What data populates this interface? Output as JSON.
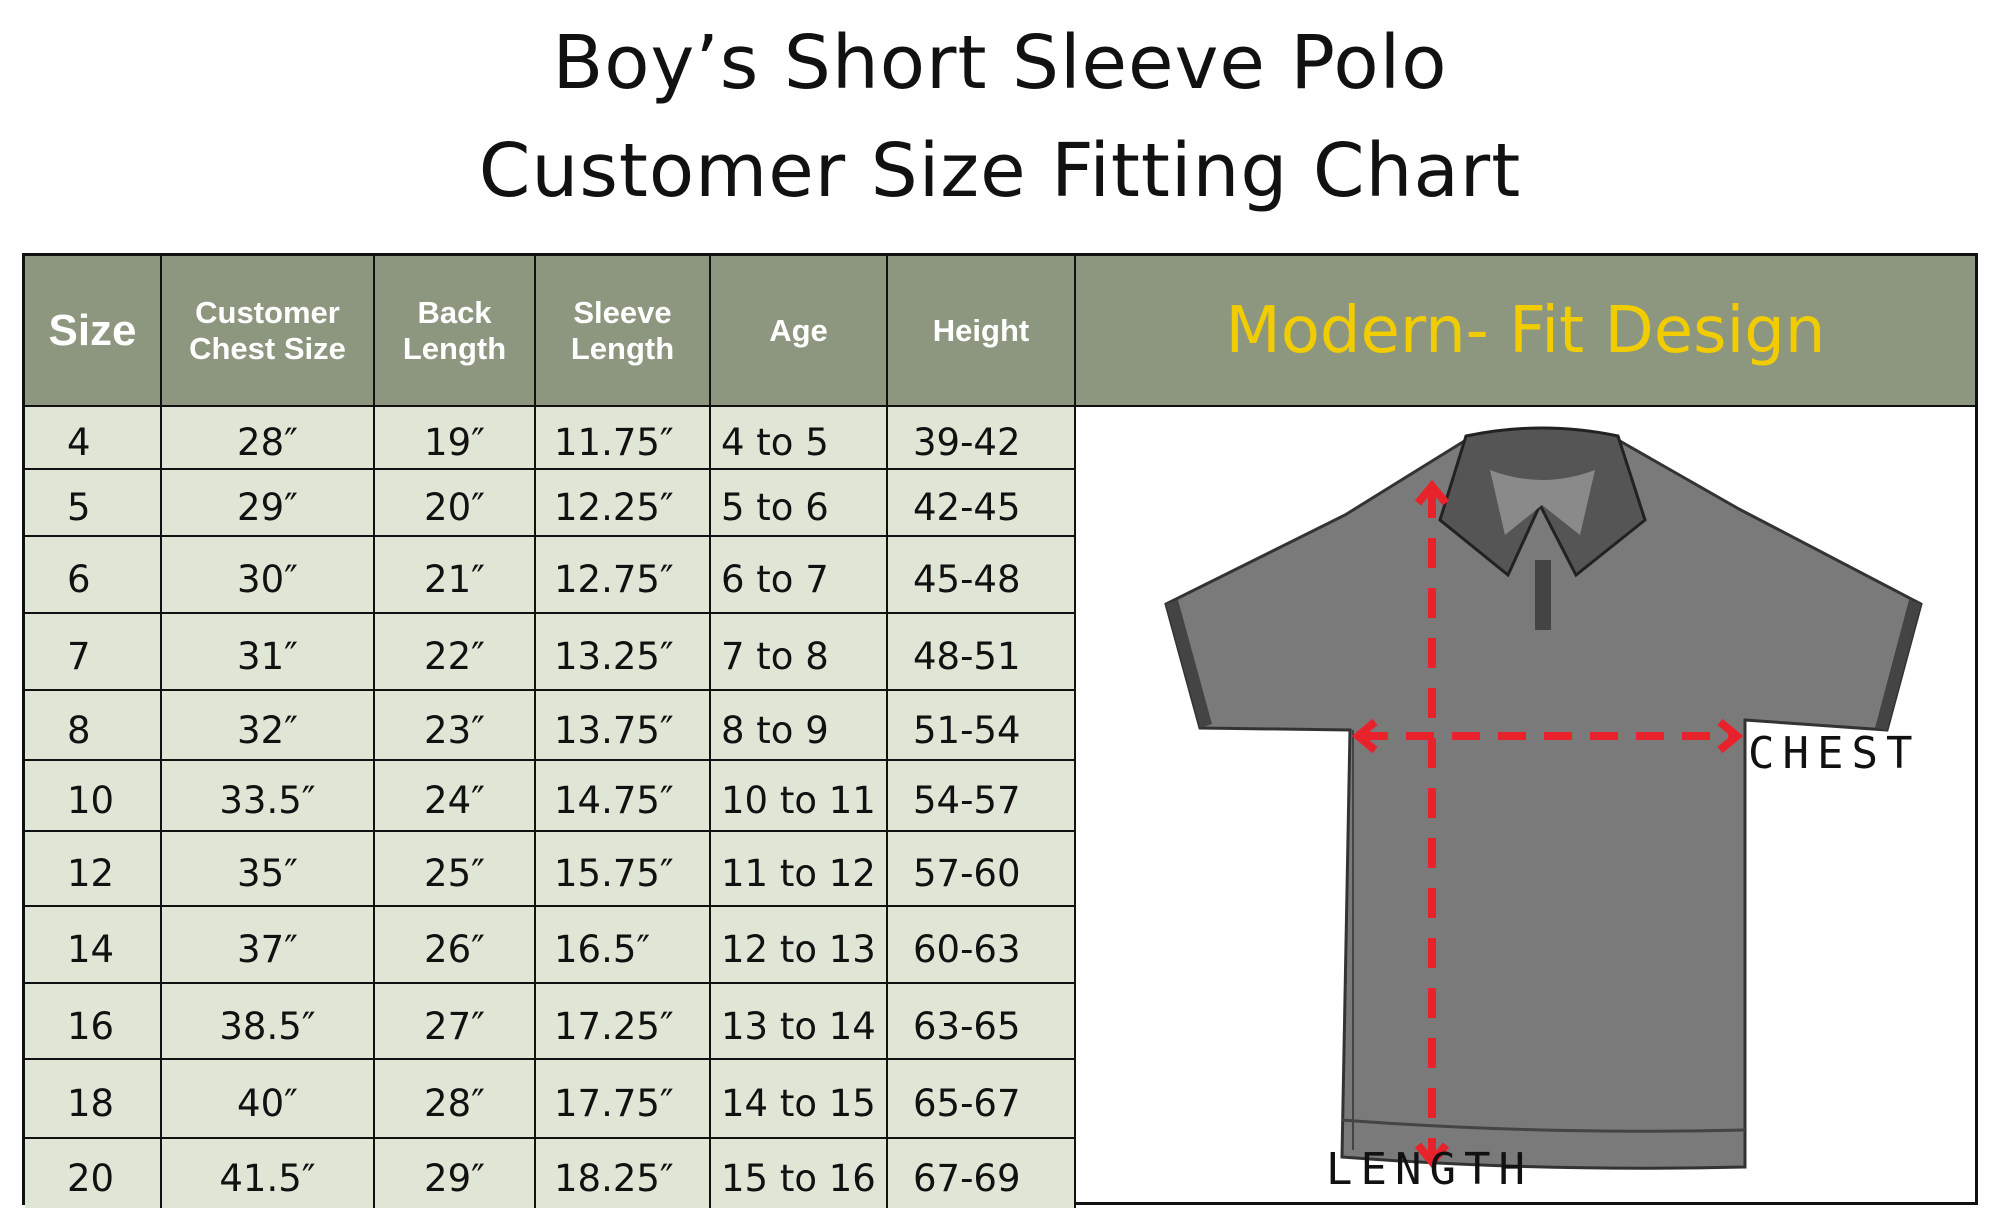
{
  "title_line1": "Boy’s Short Sleeve Polo",
  "title_line2": "Customer Size Fitting Chart",
  "columns": [
    "Size",
    "Customer\nChest Size",
    "Back\nLength",
    "Sleeve\nLength",
    "Age",
    "Height"
  ],
  "design_label": "Modern- Fit Design",
  "rows": [
    [
      "4",
      "28″",
      "19″",
      "11.75″",
      "4 to 5",
      "39-42"
    ],
    [
      "5",
      "29″",
      "20″",
      "12.25″",
      "5 to 6",
      "42-45"
    ],
    [
      "6",
      "30″",
      "21″",
      "12.75″",
      "6 to 7",
      "45-48"
    ],
    [
      "7",
      "31″",
      "22″",
      "13.25″",
      "7 to 8",
      "48-51"
    ],
    [
      "8",
      "32″",
      "23″",
      "13.75″",
      "8 to 9",
      "51-54"
    ],
    [
      "10",
      "33.5″",
      "24″",
      "14.75″",
      "10 to 11",
      "54-57"
    ],
    [
      "12",
      "35″",
      "25″",
      "15.75″",
      "11 to 12",
      "57-60"
    ],
    [
      "14",
      "37″",
      "26″",
      "16.5″",
      "12 to 13",
      "60-63"
    ],
    [
      "16",
      "38.5″",
      "27″",
      "17.25″",
      "13 to 14",
      "63-65"
    ],
    [
      "18",
      "40″",
      "28″",
      "17.75″",
      "14 to 15",
      "65-67"
    ],
    [
      "20",
      "41.5″",
      "29″",
      "18.25″",
      "15 to 16",
      "67-69"
    ]
  ],
  "diagram": {
    "chest_label": "CHEST",
    "length_label": "LENGTH"
  },
  "colors": {
    "header_bg": "#8d977f",
    "cell_bg": "#e0e6d6",
    "accent_yellow": "#f0cc00",
    "arrow_red": "#e8222a",
    "shirt_gray": "#7a7a7a"
  }
}
